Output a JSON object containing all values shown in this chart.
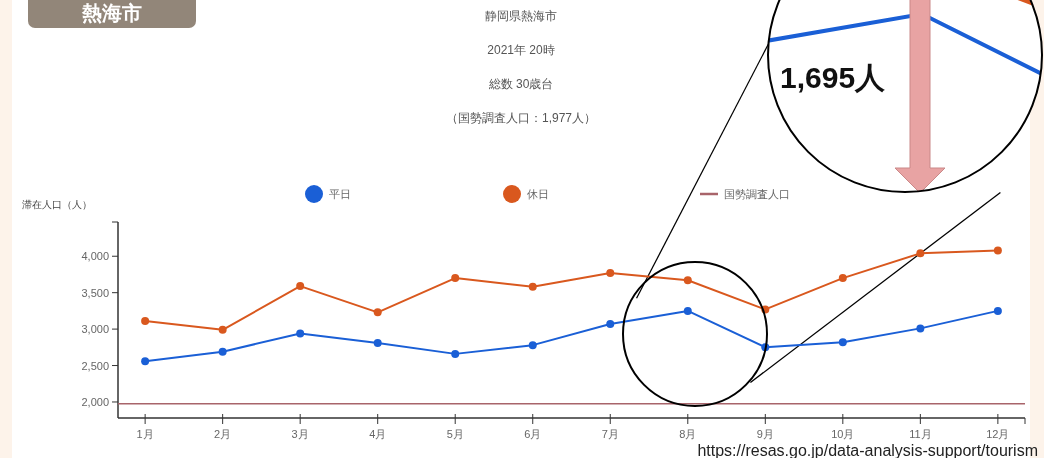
{
  "chart_data": {
    "type": "line",
    "title": "静岡県熱海市",
    "subtitle": "2021年 20時",
    "ylabel": "滞在人口（人）",
    "categories": [
      "1月",
      "2月",
      "3月",
      "4月",
      "5月",
      "6月",
      "7月",
      "8月",
      "9月",
      "10月",
      "11月",
      "12月"
    ],
    "series": [
      {
        "name": "平日",
        "color": "#1a5fd6",
        "values": [
          2560,
          2690,
          2940,
          2810,
          2660,
          2780,
          3070,
          3250,
          2750,
          2820,
          3010,
          3250
        ]
      },
      {
        "name": "休日",
        "color": "#d9581e",
        "values": [
          3110,
          2990,
          3590,
          3230,
          3700,
          3580,
          3770,
          3670,
          3270,
          3700,
          4040,
          4080
        ]
      }
    ],
    "ref_lines": [
      {
        "axis": "y",
        "value": 1977,
        "label": "国勢調査人口",
        "color": "#a8646a"
      }
    ],
    "ylim": [
      1780,
      4470
    ],
    "yticks": [
      {
        "value": 2000,
        "label": "2,000"
      },
      {
        "value": 2500,
        "label": "2,500"
      },
      {
        "value": 3000,
        "label": "3,000"
      },
      {
        "value": 3500,
        "label": "3,500"
      },
      {
        "value": 4000,
        "label": "4,000"
      }
    ],
    "annotations": [
      "熱海市",
      "1,695人",
      "https://resas.go.jp/data-analysis-support/tourism",
      "総数 30歳台",
      "（国勢調査人口：1,977人）"
    ],
    "legend": "top",
    "marker": "circle",
    "line_style": "solid",
    "grid": false
  }
}
